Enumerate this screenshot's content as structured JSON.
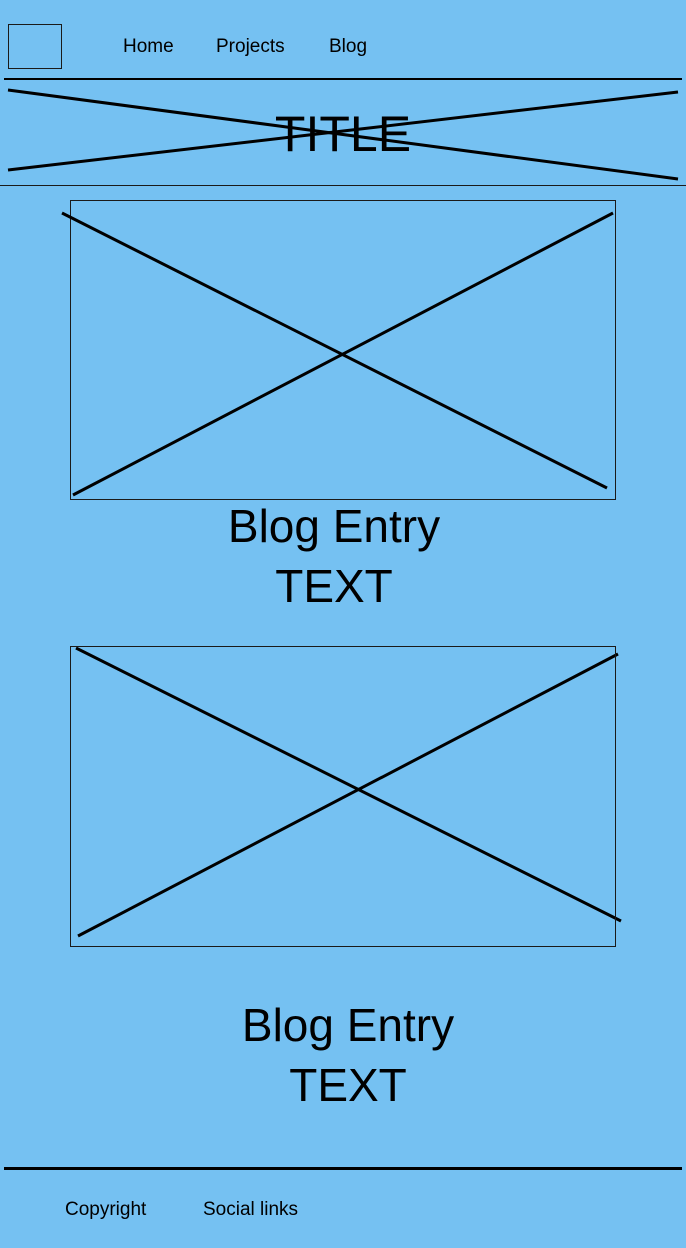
{
  "nav": {
    "items": [
      {
        "label": "Home"
      },
      {
        "label": "Projects"
      },
      {
        "label": "Blog"
      }
    ]
  },
  "header": {
    "title": "TITLE"
  },
  "entries": [
    {
      "title": "Blog Entry",
      "text": "TEXT"
    },
    {
      "title": "Blog Entry",
      "text": "TEXT"
    }
  ],
  "footer": {
    "copyright": "Copyright",
    "social": "Social links"
  },
  "colors": {
    "background": "#75c1f2",
    "line": "#000000"
  }
}
